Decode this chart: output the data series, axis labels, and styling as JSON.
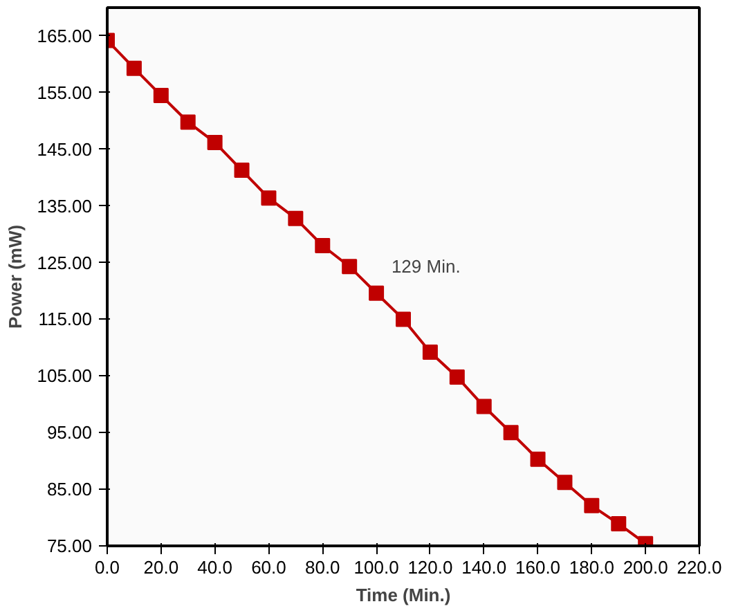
{
  "chart_data": {
    "type": "line",
    "xlabel": "Time (Min.)",
    "ylabel": "Power (mW)",
    "x": [
      0,
      10,
      20,
      30,
      40,
      50,
      60,
      70,
      80,
      90,
      100,
      110,
      120,
      130,
      140,
      150,
      160,
      170,
      180,
      190,
      200
    ],
    "series": [
      {
        "color": "#c00000",
        "values": [
          164.2,
          159.3,
          154.5,
          149.8,
          146.2,
          141.3,
          136.4,
          132.8,
          128.0,
          124.3,
          119.6,
          115.0,
          109.2,
          104.8,
          99.6,
          95.0,
          90.3,
          86.2,
          82.1,
          78.9,
          75.4
        ]
      }
    ],
    "xlim": [
      0,
      220
    ],
    "ylim": [
      75,
      170
    ],
    "xticks": [
      {
        "value": 0,
        "label": "0.0"
      },
      {
        "value": 20,
        "label": "20.0"
      },
      {
        "value": 40,
        "label": "40.0"
      },
      {
        "value": 60,
        "label": "60.0"
      },
      {
        "value": 80,
        "label": "80.0"
      },
      {
        "value": 100,
        "label": "100.0"
      },
      {
        "value": 120,
        "label": "120.0"
      },
      {
        "value": 140,
        "label": "140.0"
      },
      {
        "value": 160,
        "label": "160.0"
      },
      {
        "value": 180,
        "label": "180.0"
      },
      {
        "value": 200,
        "label": "200.0"
      },
      {
        "value": 220,
        "label": "220.0"
      }
    ],
    "yticks": [
      {
        "value": 75,
        "label": "75.00"
      },
      {
        "value": 85,
        "label": "85.00"
      },
      {
        "value": 95,
        "label": "95.00"
      },
      {
        "value": 105,
        "label": "105.00"
      },
      {
        "value": 115,
        "label": "115.00"
      },
      {
        "value": 125,
        "label": "125.00"
      },
      {
        "value": 135,
        "label": "135.00"
      },
      {
        "value": 145,
        "label": "145.00"
      },
      {
        "value": 155,
        "label": "155.00"
      },
      {
        "value": 165,
        "label": "165.00"
      }
    ],
    "annotations": [
      "129 Min."
    ],
    "marker": "square",
    "grid": false
  }
}
